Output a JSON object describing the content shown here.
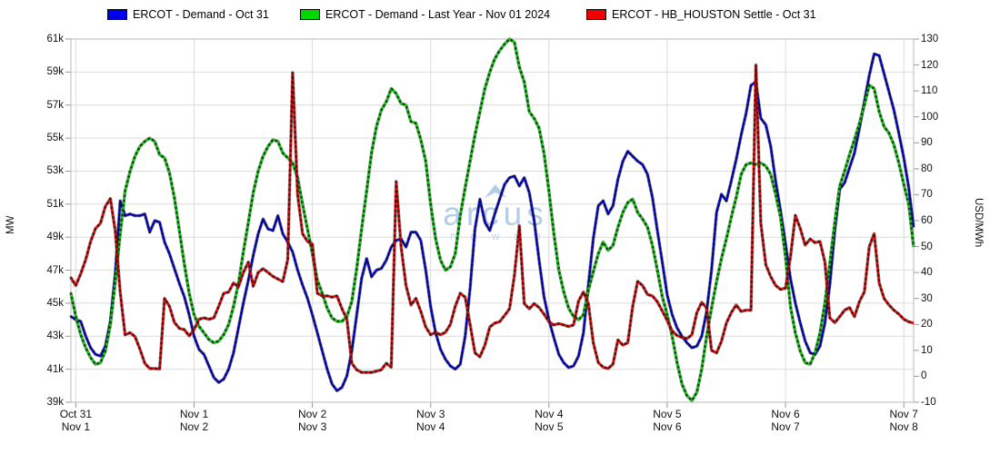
{
  "legend": {
    "items": [
      {
        "label": "ERCOT - Demand - Oct 31",
        "color": "#0000f0"
      },
      {
        "label": "ERCOT - Demand - Last Year - Nov 01 2024",
        "color": "#00d800"
      },
      {
        "label": "ERCOT - HB_HOUSTON Settle - Oct 31",
        "color": "#f00000"
      }
    ]
  },
  "watermark": {
    "brand": "arcus",
    "subtitle": "P O W E R",
    "color": "#b4cde8"
  },
  "chart_data": {
    "type": "line",
    "title": "",
    "grid": true,
    "legend_position": "top",
    "x_axis": {
      "unit": "hours",
      "hours_per_point": 1,
      "note": "first array entry is 1h before first tick; ticks every 24 points starting at index 1",
      "tick_labels_row1": [
        "Oct 31",
        "Nov 1",
        "Nov 2",
        "Nov 3",
        "Nov 4",
        "Nov 5",
        "Nov 6",
        "Nov 7"
      ],
      "tick_labels_row2": [
        "Nov 1",
        "Nov 2",
        "Nov 3",
        "Nov 4",
        "Nov 5",
        "Nov 6",
        "Nov 7",
        "Nov 8"
      ]
    },
    "y_left": {
      "label": "MW",
      "min": 39000,
      "max": 61000,
      "tick_step": 2000,
      "tick_labels": [
        "61k",
        "59k",
        "57k",
        "55k",
        "53k",
        "51k",
        "49k",
        "47k",
        "45k",
        "43k",
        "41k",
        "39k"
      ]
    },
    "y_right": {
      "label": "USD/MWh",
      "min": -10,
      "max": 130,
      "tick_step": 10,
      "tick_labels": [
        "130",
        "120",
        "110",
        "100",
        "90",
        "80",
        "70",
        "60",
        "50",
        "40",
        "30",
        "20",
        "10",
        "0",
        "-10"
      ]
    },
    "series": [
      {
        "name": "ERCOT - Demand - Oct 31",
        "color": "#0000f0",
        "axis": "left",
        "unit": "MW",
        "values": [
          44200,
          44000,
          43900,
          43000,
          42300,
          41900,
          41800,
          42400,
          43900,
          46800,
          51200,
          50300,
          50400,
          50300,
          50300,
          50400,
          49300,
          50000,
          49900,
          48700,
          48000,
          47100,
          46200,
          45400,
          44300,
          43000,
          42200,
          41900,
          41200,
          40500,
          40200,
          40400,
          41000,
          42000,
          43500,
          45000,
          46400,
          47900,
          49200,
          50100,
          49500,
          49400,
          50300,
          49200,
          48700,
          48100,
          47000,
          46100,
          45300,
          44300,
          43200,
          42100,
          41000,
          40100,
          39700,
          39900,
          40600,
          42100,
          44300,
          46500,
          47700,
          46600,
          47000,
          47100,
          47600,
          48400,
          48800,
          48900,
          48400,
          49300,
          49300,
          48800,
          47000,
          44800,
          43200,
          42200,
          41600,
          41200,
          41000,
          41300,
          43000,
          45900,
          49500,
          51300,
          49900,
          49400,
          50400,
          51300,
          52200,
          52600,
          52700,
          52100,
          52600,
          51700,
          50000,
          47600,
          45400,
          44000,
          42900,
          41900,
          41400,
          41100,
          41200,
          41800,
          43200,
          46100,
          48900,
          50900,
          51200,
          50400,
          50900,
          52500,
          53600,
          54200,
          53900,
          53600,
          53400,
          52800,
          51400,
          49400,
          47500,
          45500,
          44300,
          43500,
          43000,
          42600,
          42300,
          42400,
          43000,
          44500,
          47000,
          50500,
          51600,
          51200,
          52400,
          53700,
          55200,
          56500,
          58200,
          58400,
          56200,
          55800,
          54500,
          52400,
          50600,
          48600,
          46500,
          45000,
          43800,
          42700,
          42000,
          41900,
          42400,
          43800,
          46100,
          49400,
          51900,
          52300,
          53200,
          54100,
          55600,
          57200,
          58800,
          60100,
          60000,
          58900,
          57800,
          56700,
          55300,
          53800,
          52000,
          49600
        ]
      },
      {
        "name": "ERCOT - Demand - Last Year - Nov 01 2024",
        "color": "#00d800",
        "axis": "left",
        "unit": "MW",
        "values": [
          45600,
          44200,
          43100,
          42300,
          41700,
          41300,
          41400,
          42100,
          43700,
          46300,
          49200,
          51800,
          53000,
          53900,
          54500,
          54800,
          55000,
          54800,
          54000,
          53800,
          52900,
          51400,
          49400,
          47400,
          45600,
          44300,
          43600,
          43200,
          42800,
          42600,
          42700,
          43100,
          43700,
          44800,
          46200,
          48100,
          49900,
          51700,
          53000,
          53900,
          54500,
          54900,
          54800,
          54100,
          53800,
          53500,
          52600,
          51000,
          49500,
          48000,
          46400,
          45600,
          44700,
          44100,
          43900,
          43900,
          44200,
          45100,
          47100,
          49500,
          51800,
          54100,
          55700,
          56700,
          57200,
          58000,
          57700,
          57100,
          57000,
          56000,
          55900,
          54900,
          53600,
          51000,
          48900,
          47600,
          47000,
          47200,
          48000,
          50300,
          52000,
          53600,
          55200,
          56600,
          58000,
          59000,
          59800,
          60300,
          60700,
          61000,
          60800,
          59300,
          58400,
          56600,
          56200,
          55600,
          54100,
          51800,
          49200,
          47000,
          45700,
          44700,
          44200,
          44000,
          44300,
          45800,
          46900,
          48000,
          48700,
          48200,
          48500,
          49600,
          50500,
          51100,
          51300,
          50500,
          50100,
          49600,
          48500,
          47000,
          45400,
          44300,
          43000,
          41400,
          40100,
          39400,
          39100,
          39600,
          41000,
          43000,
          44700,
          46300,
          47700,
          48900,
          50200,
          51400,
          52800,
          53400,
          53500,
          53400,
          53500,
          53300,
          52800,
          51600,
          50200,
          47800,
          44800,
          43200,
          42100,
          41400,
          41300,
          42000,
          43200,
          45000,
          47400,
          49900,
          52100,
          53000,
          54000,
          54900,
          55900,
          57000,
          58200,
          58000,
          56600,
          55700,
          55300,
          54600,
          53500,
          52200,
          51000,
          48400
        ]
      },
      {
        "name": "ERCOT - HB_HOUSTON Settle - Oct 31",
        "color": "#f00000",
        "axis": "right",
        "unit": "USD/MWh",
        "values": [
          38,
          35,
          39.5,
          45,
          52,
          57,
          59,
          65.5,
          68.5,
          56,
          32.5,
          16,
          16.8,
          15.3,
          10.5,
          5,
          3,
          3,
          2.8,
          30,
          27,
          20.8,
          18.5,
          18,
          15.6,
          18,
          22,
          22.5,
          22,
          22.5,
          27,
          32,
          32.5,
          36,
          34.5,
          40,
          44,
          34.7,
          40,
          41.5,
          40,
          38.5,
          37.5,
          36.5,
          45,
          117,
          70,
          55,
          52,
          51,
          32,
          31,
          31,
          30.5,
          31,
          26,
          22,
          5,
          2.5,
          1.5,
          1.5,
          1.5,
          2,
          2.5,
          5,
          3.5,
          75,
          50,
          35,
          27.5,
          30,
          25,
          19,
          16,
          17,
          16,
          17,
          20,
          27,
          32,
          30.5,
          20,
          9,
          7.5,
          12,
          19,
          20.5,
          21,
          23.5,
          26,
          39,
          58,
          28,
          26,
          28,
          26.5,
          24,
          21,
          19.8,
          20.3,
          19.8,
          19.2,
          19.8,
          29,
          32.5,
          28,
          13,
          5.3,
          3.5,
          3,
          4.7,
          14,
          12,
          13,
          27,
          36.6,
          35,
          31.5,
          31,
          28.7,
          25.2,
          21.5,
          17.5,
          15.7,
          15,
          14.5,
          16,
          24.5,
          28.5,
          26.3,
          10,
          9,
          13.5,
          20.5,
          24.5,
          27.5,
          25,
          25.5,
          25.5,
          120,
          59,
          43,
          38.4,
          35,
          33.5,
          34,
          46,
          62,
          57,
          50.6,
          52.9,
          51.5,
          52,
          44,
          22.5,
          20.7,
          23,
          25.5,
          26.5,
          23,
          28.8,
          32.5,
          50,
          55,
          36,
          30,
          27.5,
          25.5,
          24,
          22,
          21,
          20.5
        ]
      }
    ]
  }
}
